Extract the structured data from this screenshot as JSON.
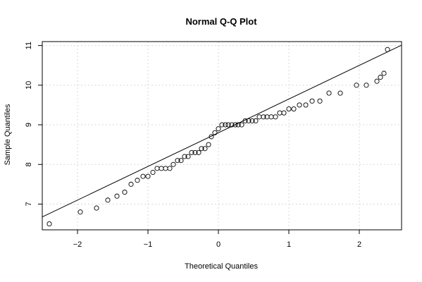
{
  "chart_data": {
    "type": "scatter",
    "title": "Normal Q-Q Plot",
    "xlabel": "Theoretical Quantiles",
    "ylabel": "Sample Quantiles",
    "xlim": [
      -2.5,
      2.6
    ],
    "ylim": [
      6.35,
      11.1
    ],
    "xticks": [
      -2,
      -1,
      0,
      1,
      2
    ],
    "xtick_labels": [
      "−2",
      "−1",
      "0",
      "1",
      "2"
    ],
    "yticks": [
      7,
      8,
      9,
      10,
      11
    ],
    "ytick_labels": [
      "7",
      "8",
      "9",
      "10",
      "11"
    ],
    "grid": true,
    "points": [
      {
        "x": -2.4,
        "y": 6.5
      },
      {
        "x": -1.96,
        "y": 6.8
      },
      {
        "x": -1.73,
        "y": 6.9
      },
      {
        "x": -1.57,
        "y": 7.1
      },
      {
        "x": -1.44,
        "y": 7.2
      },
      {
        "x": -1.33,
        "y": 7.3
      },
      {
        "x": -1.24,
        "y": 7.5
      },
      {
        "x": -1.15,
        "y": 7.6
      },
      {
        "x": -1.07,
        "y": 7.7
      },
      {
        "x": -1.0,
        "y": 7.7
      },
      {
        "x": -0.93,
        "y": 7.8
      },
      {
        "x": -0.87,
        "y": 7.9
      },
      {
        "x": -0.81,
        "y": 7.9
      },
      {
        "x": -0.75,
        "y": 7.9
      },
      {
        "x": -0.69,
        "y": 7.9
      },
      {
        "x": -0.64,
        "y": 8.0
      },
      {
        "x": -0.58,
        "y": 8.1
      },
      {
        "x": -0.53,
        "y": 8.1
      },
      {
        "x": -0.48,
        "y": 8.2
      },
      {
        "x": -0.43,
        "y": 8.2
      },
      {
        "x": -0.38,
        "y": 8.3
      },
      {
        "x": -0.33,
        "y": 8.3
      },
      {
        "x": -0.28,
        "y": 8.3
      },
      {
        "x": -0.24,
        "y": 8.4
      },
      {
        "x": -0.19,
        "y": 8.4
      },
      {
        "x": -0.14,
        "y": 8.5
      },
      {
        "x": -0.1,
        "y": 8.7
      },
      {
        "x": -0.05,
        "y": 8.8
      },
      {
        "x": 0.0,
        "y": 8.9
      },
      {
        "x": 0.05,
        "y": 9.0
      },
      {
        "x": 0.1,
        "y": 9.0
      },
      {
        "x": 0.14,
        "y": 9.0
      },
      {
        "x": 0.19,
        "y": 9.0
      },
      {
        "x": 0.24,
        "y": 9.0
      },
      {
        "x": 0.28,
        "y": 9.0
      },
      {
        "x": 0.33,
        "y": 9.0
      },
      {
        "x": 0.38,
        "y": 9.1
      },
      {
        "x": 0.43,
        "y": 9.1
      },
      {
        "x": 0.48,
        "y": 9.1
      },
      {
        "x": 0.53,
        "y": 9.1
      },
      {
        "x": 0.58,
        "y": 9.2
      },
      {
        "x": 0.64,
        "y": 9.2
      },
      {
        "x": 0.69,
        "y": 9.2
      },
      {
        "x": 0.75,
        "y": 9.2
      },
      {
        "x": 0.81,
        "y": 9.2
      },
      {
        "x": 0.87,
        "y": 9.3
      },
      {
        "x": 0.93,
        "y": 9.3
      },
      {
        "x": 1.0,
        "y": 9.4
      },
      {
        "x": 1.07,
        "y": 9.4
      },
      {
        "x": 1.15,
        "y": 9.5
      },
      {
        "x": 1.24,
        "y": 9.5
      },
      {
        "x": 1.33,
        "y": 9.6
      },
      {
        "x": 1.44,
        "y": 9.6
      },
      {
        "x": 1.57,
        "y": 9.8
      },
      {
        "x": 1.73,
        "y": 9.8
      },
      {
        "x": 1.96,
        "y": 10.0
      },
      {
        "x": 2.1,
        "y": 10.0
      },
      {
        "x": 2.25,
        "y": 10.1
      },
      {
        "x": 2.3,
        "y": 10.2
      },
      {
        "x": 2.35,
        "y": 10.3
      },
      {
        "x": 2.4,
        "y": 10.9
      }
    ],
    "reference_line": {
      "intercept": 8.8,
      "slope": 0.85
    }
  }
}
